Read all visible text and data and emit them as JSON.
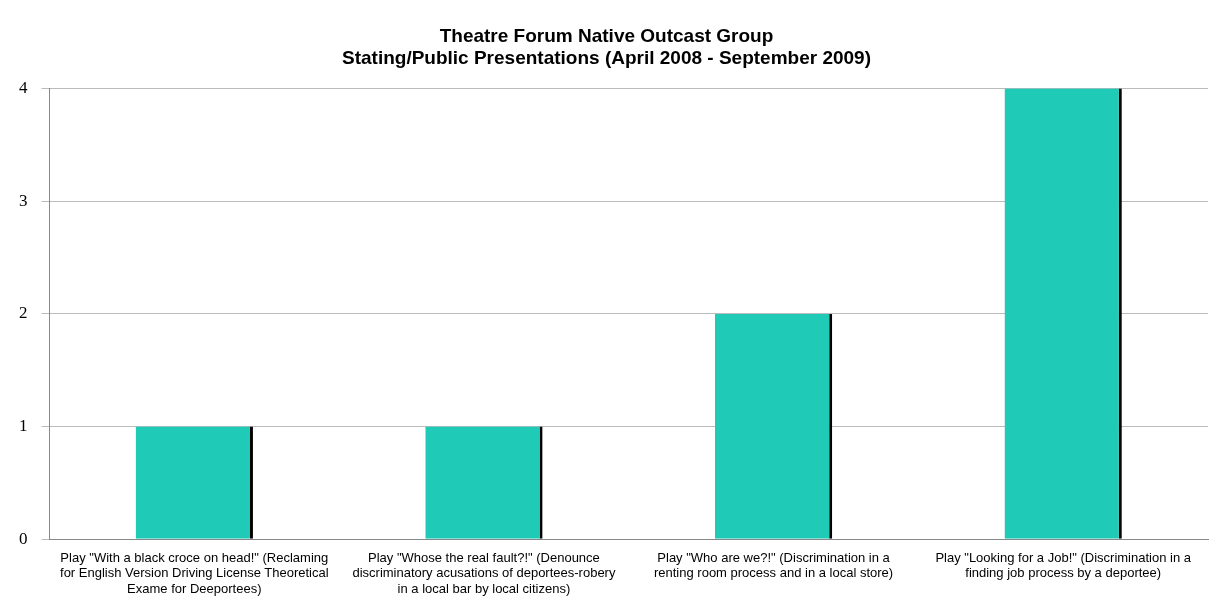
{
  "chart_data": {
    "type": "bar",
    "title": "Theatre Forum Native Outcast Group\nStating/Public Presentations (April 2008 - September 2009)",
    "categories": [
      "Play \"With a black croce on head!\" (Reclaming for English Version Driving License Theoretical Exame for Deeportees)",
      "Play \"Whose the real fault?!\" (Denounce discriminatory acusations of deportees-robery in a local bar by local citizens)",
      "Play \"Who are we?!\" (Discrimination in a renting room process and in a local store)",
      "Play \"Looking for a Job!\" (Discrimination in a finding job process by a deportee)"
    ],
    "values": [
      1,
      1,
      2,
      4
    ],
    "color": "#1fcab6",
    "ylim": [
      0,
      4
    ],
    "yticks": [
      0,
      1,
      2,
      3,
      4
    ],
    "grid": "y"
  }
}
